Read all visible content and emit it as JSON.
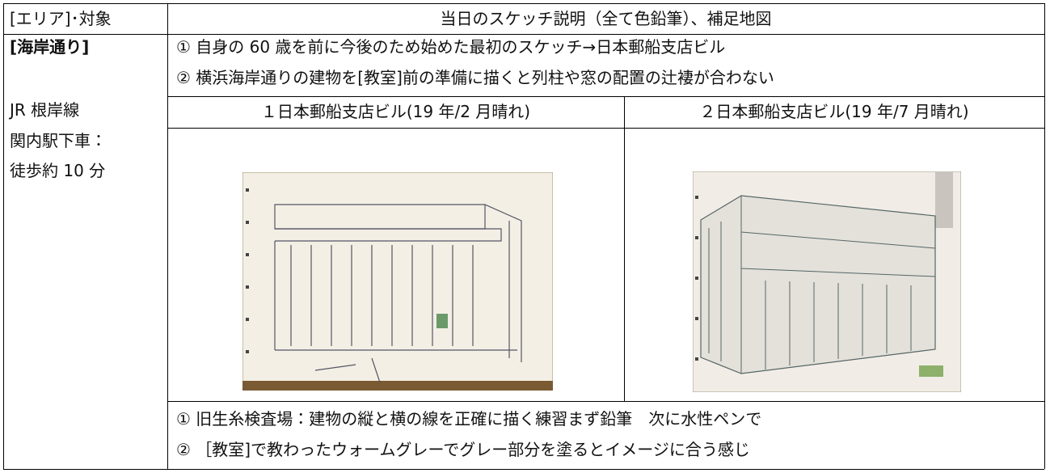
{
  "header": {
    "col1": "[エリア]･対象",
    "col2": "当日のスケッチ説明（全て色鉛筆）、補足地図"
  },
  "area": {
    "title": "[海岸通り]",
    "access": [
      "JR 根岸線",
      "関内駅下車：",
      "徒歩約 10 分"
    ]
  },
  "notes_top": [
    "① 自身の 60 歳を前に今後のため始めた最初のスケッチ→日本郵船支店ビル",
    "② 横浜海岸通りの建物を[教室]前の準備に描くと列柱や窓の配置の辻褄が合わない"
  ],
  "sketches": [
    {
      "caption": "１日本郵船支店ビル(19 年/2 月晴れ)"
    },
    {
      "caption": "２日本郵船支店ビル(19 年/7 月晴れ)"
    }
  ],
  "notes_bottom": [
    "① 旧生糸検査場：建物の縦と横の線を正確に描く練習まず鉛筆　次に水性ペンで",
    "② ［教室]で教わったウォームグレーでグレー部分を塗るとイメージに合う感じ"
  ]
}
